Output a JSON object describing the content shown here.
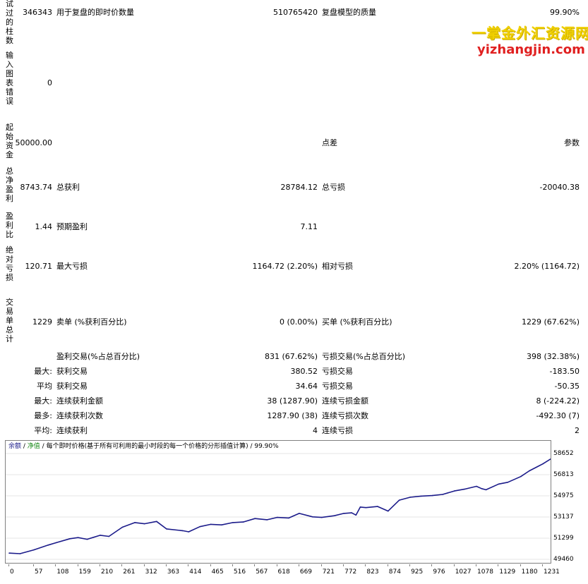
{
  "rows": {
    "r1": {
      "c0": "346343",
      "l1": "用于复盘的即时价数量",
      "v1": "510765420",
      "l2": "复盘模型的质量",
      "v2": "99.90%"
    },
    "r2": {
      "c0": "0"
    },
    "r3": {
      "c0": "50000.00",
      "l2": "点差",
      "v2": "参数"
    },
    "r4": {
      "c0": "8743.74",
      "l1": "总获利",
      "v1": "28784.12",
      "l2": "总亏损",
      "v2": "-20040.38"
    },
    "r5": {
      "c0": "1.44",
      "l1": "预期盈利",
      "v1": "7.11"
    },
    "r6": {
      "c0": "120.71",
      "l1": "最大亏损",
      "v1": "1164.72 (2.20%)",
      "l2": "相对亏损",
      "v2": "2.20% (1164.72)"
    },
    "r7": {
      "c0": "1229",
      "l1": "卖单 (%获利百分比)",
      "v1": "0 (0.00%)",
      "l2": "买单 (%获利百分比)",
      "v2": "1229 (67.62%)"
    },
    "r8": {
      "l1": "盈利交易(%占总百分比)",
      "v1": "831 (67.62%)",
      "l2": "亏损交易(%占总百分比)",
      "v2": "398 (32.38%)"
    },
    "r9": {
      "c0": "最大:",
      "l1": "获利交易",
      "v1": "380.52",
      "l2": "亏损交易",
      "v2": "-183.50"
    },
    "r10": {
      "c0": "平均",
      "l1": "获利交易",
      "v1": "34.64",
      "l2": "亏损交易",
      "v2": "-50.35"
    },
    "r11": {
      "c0": "最大:",
      "l1": "连续获利金额",
      "v1": "38 (1287.90)",
      "l2": "连续亏损金额",
      "v2": "8 (-224.22)"
    },
    "r12": {
      "c0": "最多:",
      "l1": "连续获利次数",
      "v1": "1287.90 (38)",
      "l2": "连续亏损次数",
      "v2": "-492.30 (7)"
    },
    "r13": {
      "c0": "平均:",
      "l1": "连续获利",
      "v1": "4",
      "l2": "连续亏损",
      "v2": "2"
    }
  },
  "side_labels": {
    "s1": "试过的柱数",
    "s2": "输入图表错误",
    "s3": "起始资金",
    "s4": "总净盈利",
    "s5": "盈利比",
    "s6": "绝对亏损",
    "s7": "交易单总计"
  },
  "watermark": {
    "line1": "一掌金外汇资源网",
    "line2": "yizhangjin.com"
  },
  "legend": {
    "balance": "余额",
    "equity": "净值",
    "desc": "每个即时价格(基于所有可利用的最小时段的每一个价格的分形插值计算)",
    "quality": "99.90%",
    "sep": " / "
  },
  "chart_data": {
    "type": "line",
    "series": [
      {
        "name": "余额",
        "color": "#1b1b8a"
      }
    ],
    "x_ticks": [
      "0",
      "57",
      "108",
      "159",
      "210",
      "261",
      "312",
      "363",
      "414",
      "465",
      "516",
      "567",
      "618",
      "669",
      "721",
      "772",
      "823",
      "874",
      "925",
      "976",
      "1027",
      "1078",
      "1129",
      "1180",
      "1231"
    ],
    "y_ticks": [
      "58652",
      "56813",
      "54975",
      "53137",
      "51299",
      "49460"
    ],
    "ylim": [
      49460,
      58652
    ],
    "xlim": [
      0,
      1280
    ],
    "points": [
      [
        0,
        50000
      ],
      [
        25,
        49950
      ],
      [
        57,
        50280
      ],
      [
        90,
        50700
      ],
      [
        108,
        50900
      ],
      [
        140,
        51250
      ],
      [
        159,
        51350
      ],
      [
        180,
        51200
      ],
      [
        210,
        51550
      ],
      [
        230,
        51450
      ],
      [
        261,
        52250
      ],
      [
        290,
        52650
      ],
      [
        312,
        52550
      ],
      [
        340,
        52750
      ],
      [
        363,
        52100
      ],
      [
        400,
        51950
      ],
      [
        414,
        51850
      ],
      [
        440,
        52300
      ],
      [
        465,
        52500
      ],
      [
        490,
        52450
      ],
      [
        516,
        52650
      ],
      [
        540,
        52700
      ],
      [
        567,
        53000
      ],
      [
        595,
        52900
      ],
      [
        618,
        53100
      ],
      [
        645,
        53050
      ],
      [
        669,
        53450
      ],
      [
        700,
        53150
      ],
      [
        721,
        53100
      ],
      [
        750,
        53250
      ],
      [
        772,
        53450
      ],
      [
        790,
        53500
      ],
      [
        800,
        53300
      ],
      [
        810,
        54000
      ],
      [
        823,
        53950
      ],
      [
        850,
        54050
      ],
      [
        874,
        53650
      ],
      [
        900,
        54600
      ],
      [
        925,
        54850
      ],
      [
        950,
        54950
      ],
      [
        976,
        55000
      ],
      [
        1000,
        55100
      ],
      [
        1027,
        55400
      ],
      [
        1050,
        55550
      ],
      [
        1078,
        55800
      ],
      [
        1090,
        55600
      ],
      [
        1100,
        55500
      ],
      [
        1129,
        56000
      ],
      [
        1150,
        56150
      ],
      [
        1180,
        56650
      ],
      [
        1200,
        57150
      ],
      [
        1231,
        57750
      ],
      [
        1250,
        58200
      ],
      [
        1265,
        58400
      ],
      [
        1280,
        58700
      ]
    ]
  }
}
